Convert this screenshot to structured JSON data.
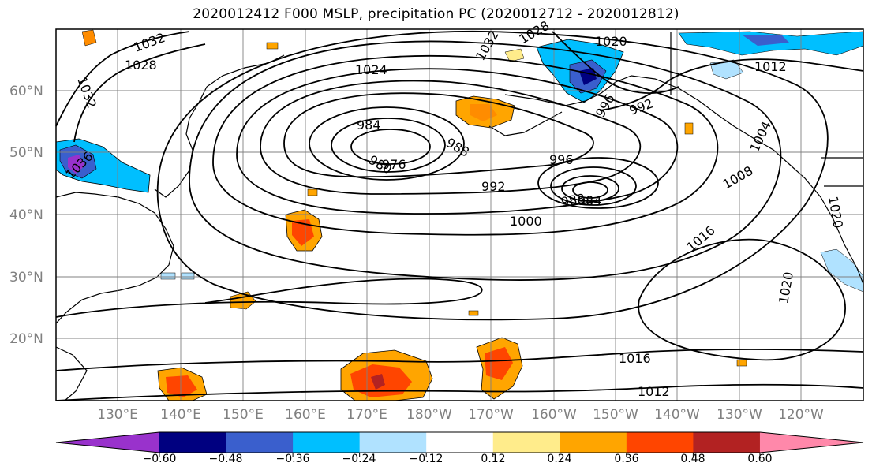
{
  "title": "2020012412 F000 MSLP, precipitation PC (2020012712 - 2020012812)",
  "map": {
    "lat_labels": [
      "60°N",
      "50°N",
      "40°N",
      "30°N",
      "20°N"
    ],
    "lon_labels": [
      "130°E",
      "140°E",
      "150°E",
      "160°E",
      "170°E",
      "180°W",
      "170°W",
      "160°W",
      "150°W",
      "140°W",
      "130°W",
      "120°W"
    ],
    "isobar_labels": [
      "1032",
      "1028",
      "1032",
      "1024",
      "984",
      "988",
      "980",
      "976",
      "996",
      "992",
      "1000",
      "988",
      "984",
      "992",
      "996",
      "1008",
      "1004",
      "1016",
      "1020",
      "1016",
      "1012",
      "1020",
      "1012",
      "1032",
      "1028",
      "1036",
      "1020"
    ]
  },
  "colorbar": {
    "colors": [
      "#9932cc",
      "#000080",
      "#3a5fcd",
      "#00bfff",
      "#b0e2ff",
      "#ffffff",
      "#ffec8b",
      "#ffa500",
      "#ff4500",
      "#b22222",
      "#ff88aa"
    ],
    "tick_labels": [
      "−0.60",
      "−0.48",
      "−0.36",
      "−0.24",
      "−0.12",
      "0.12",
      "0.24",
      "0.36",
      "0.48",
      "0.60"
    ]
  },
  "colors": {
    "frame": "#000000",
    "grid": "#808080",
    "coast": "#000000"
  }
}
